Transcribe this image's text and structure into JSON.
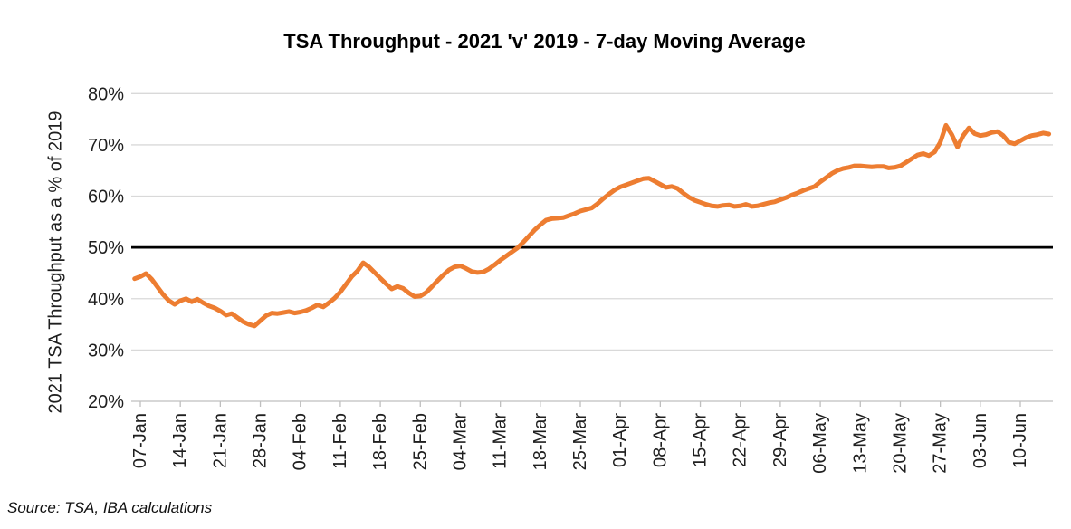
{
  "chart_data": {
    "type": "line",
    "title": "TSA Throughput - 2021 'v' 2019 - 7-day Moving Average",
    "ylabel": "2021 TSA Throughput as a % of 2019",
    "xlabel": "",
    "ylim": [
      20,
      80
    ],
    "grid": "horizontal",
    "legend": "none",
    "yticks": [
      {
        "value": 80,
        "label": "80%"
      },
      {
        "value": 70,
        "label": "70%"
      },
      {
        "value": 60,
        "label": "60%"
      },
      {
        "value": 50,
        "label": "50%"
      },
      {
        "value": 40,
        "label": "40%"
      },
      {
        "value": 30,
        "label": "30%"
      },
      {
        "value": 20,
        "label": "20%"
      }
    ],
    "xtick_labels": [
      "07-Jan",
      "14-Jan",
      "21-Jan",
      "28-Jan",
      "04-Feb",
      "11-Feb",
      "18-Feb",
      "25-Feb",
      "04-Mar",
      "11-Mar",
      "18-Mar",
      "25-Mar",
      "01-Apr",
      "08-Apr",
      "15-Apr",
      "22-Apr",
      "29-Apr",
      "06-May",
      "13-May",
      "20-May",
      "27-May",
      "03-Jun",
      "10-Jun"
    ],
    "xtick_interval_days": 7,
    "first_tick_index": 1,
    "start_date": "2021-01-06",
    "end_date": "2021-06-15",
    "frequency": "daily",
    "reference_line": {
      "value": 50,
      "color": "#000000"
    },
    "series": [
      {
        "name": "2021 TSA Throughput as a % of 2019 (7-day moving average)",
        "color": "#ED7D31",
        "values": [
          43.9,
          44.3,
          44.9,
          43.8,
          42.3,
          40.8,
          39.6,
          38.9,
          39.6,
          40.0,
          39.4,
          39.9,
          39.2,
          38.6,
          38.2,
          37.6,
          36.8,
          37.1,
          36.3,
          35.5,
          35.0,
          34.7,
          35.7,
          36.7,
          37.2,
          37.1,
          37.3,
          37.5,
          37.2,
          37.4,
          37.7,
          38.2,
          38.8,
          38.4,
          39.2,
          40.1,
          41.3,
          42.8,
          44.3,
          45.4,
          47.0,
          46.2,
          45.1,
          44.0,
          42.9,
          41.9,
          42.4,
          42.0,
          41.1,
          40.4,
          40.5,
          41.2,
          42.3,
          43.5,
          44.6,
          45.6,
          46.2,
          46.4,
          45.9,
          45.3,
          45.1,
          45.2,
          45.8,
          46.6,
          47.5,
          48.3,
          49.1,
          49.9,
          51.0,
          52.2,
          53.4,
          54.4,
          55.3,
          55.6,
          55.7,
          55.8,
          56.2,
          56.6,
          57.1,
          57.4,
          57.7,
          58.5,
          59.5,
          60.4,
          61.2,
          61.8,
          62.2,
          62.6,
          63.0,
          63.4,
          63.5,
          62.9,
          62.3,
          61.7,
          61.9,
          61.5,
          60.6,
          59.8,
          59.2,
          58.8,
          58.4,
          58.1,
          58.0,
          58.2,
          58.3,
          58.0,
          58.1,
          58.4,
          58.0,
          58.1,
          58.4,
          58.7,
          58.9,
          59.3,
          59.7,
          60.2,
          60.6,
          61.1,
          61.5,
          61.9,
          62.8,
          63.6,
          64.4,
          65.0,
          65.4,
          65.6,
          65.9,
          65.9,
          65.8,
          65.7,
          65.8,
          65.8,
          65.5,
          65.6,
          65.9,
          66.6,
          67.3,
          68.0,
          68.3,
          67.9,
          68.6,
          70.5,
          73.8,
          72.0,
          69.6,
          71.8,
          73.3,
          72.2,
          71.8,
          72.0,
          72.4,
          72.6,
          71.8,
          70.5,
          70.2,
          70.8,
          71.4,
          71.8,
          72.0,
          72.3,
          72.1
        ]
      }
    ]
  },
  "source_note": "Source: TSA, IBA calculations",
  "colors": {
    "line": "#ED7D31",
    "reference": "#000000",
    "gridline": "#D9D9D9",
    "axis": "#BFBFBF",
    "text": "#1F1F1F",
    "title": "#000000",
    "background": "#FFFFFF"
  }
}
